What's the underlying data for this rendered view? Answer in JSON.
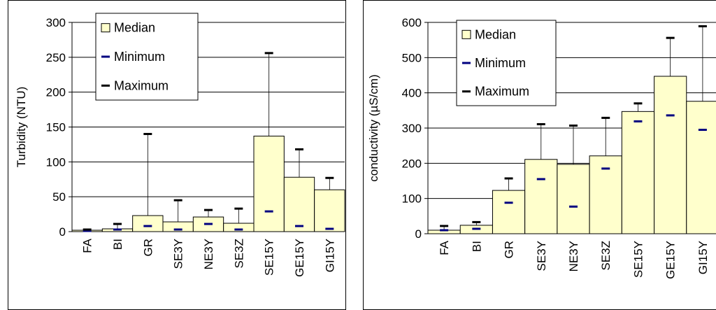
{
  "chart_data": [
    {
      "type": "bar",
      "categories": [
        "FA",
        "BI",
        "GR",
        "SE3Y",
        "NE3Y",
        "SE3Z",
        "SE15Y",
        "GE15Y",
        "GI15Y"
      ],
      "series": [
        {
          "name": "Median",
          "values": [
            2,
            4,
            23,
            14,
            21,
            12,
            137,
            78,
            60
          ]
        },
        {
          "name": "Minimum",
          "values": [
            1,
            3,
            8,
            3,
            11,
            3,
            29,
            8,
            4
          ]
        },
        {
          "name": "Maximum",
          "values": [
            3,
            11,
            140,
            45,
            31,
            33,
            256,
            118,
            77
          ]
        }
      ],
      "title": "",
      "xlabel": "",
      "ylabel": "Turbidity (NTU)",
      "ylim": [
        0,
        300
      ],
      "yticks": [
        "0",
        "50",
        "100",
        "150",
        "200",
        "250",
        "300"
      ],
      "grid": true,
      "legend": "top-left",
      "colors": {
        "bar_fill": "#ffffcc",
        "bar_stroke": "#000000",
        "minimum": "#000080",
        "maximum": "#000000"
      }
    },
    {
      "type": "bar",
      "categories": [
        "FA",
        "BI",
        "GR",
        "SE3Y",
        "NE3Y",
        "SE3Z",
        "SE15Y",
        "GE15Y",
        "GI15Y"
      ],
      "series": [
        {
          "name": "Median",
          "values": [
            10,
            24,
            123,
            211,
            197,
            221,
            347,
            447,
            376
          ]
        },
        {
          "name": "Minimum",
          "values": [
            10,
            14,
            88,
            155,
            77,
            185,
            319,
            336,
            295
          ]
        },
        {
          "name": "Maximum",
          "values": [
            22,
            33,
            157,
            311,
            307,
            329,
            370,
            556,
            589
          ]
        }
      ],
      "title": "",
      "xlabel": "",
      "ylabel": "conductivity (µS/cm)",
      "ylim": [
        0,
        600
      ],
      "yticks": [
        "0",
        "100",
        "200",
        "300",
        "400",
        "500",
        "600"
      ],
      "grid": true,
      "legend": "top-left",
      "colors": {
        "bar_fill": "#ffffcc",
        "bar_stroke": "#000000",
        "minimum": "#000080",
        "maximum": "#000000"
      }
    }
  ]
}
